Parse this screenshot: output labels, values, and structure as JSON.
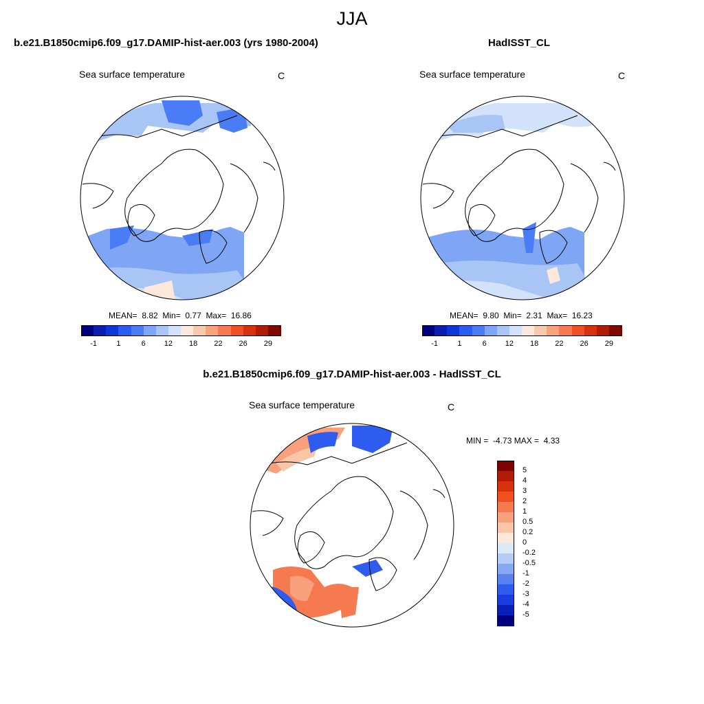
{
  "figure": {
    "title": "JJA",
    "panels": [
      {
        "title": "b.e21.B1850cmip6.f09_g17.DAMIP-hist-aer.003 (yrs 1980-2004)",
        "variable": "Sea surface temperature",
        "units": "C",
        "stats": {
          "mean_label": "MEAN=",
          "mean": "8.82",
          "min_label": "Min=",
          "min": "0.77",
          "max_label": "Max=",
          "max": "16.86"
        }
      },
      {
        "title": "HadISST_CL",
        "variable": "Sea surface temperature",
        "units": "C",
        "stats": {
          "mean_label": "MEAN=",
          "mean": "9.80",
          "min_label": "Min=",
          "min": "2.31",
          "max_label": "Max=",
          "max": "16.23"
        }
      },
      {
        "title": "b.e21.B1850cmip6.f09_g17.DAMIP-hist-aer.003 - HadISST_CL",
        "variable": "Sea surface temperature",
        "units": "C",
        "stats": {
          "min_label": "MIN =",
          "min": "-4.73",
          "max_label": "MAX =",
          "max": "4.33"
        }
      }
    ]
  },
  "chart_data": [
    {
      "type": "heatmap",
      "projection": "north polar stereographic",
      "title": "b.e21.B1850cmip6.f09_g17.DAMIP-hist-aer.003 (yrs 1980-2004)",
      "variable": "Sea surface temperature",
      "units": "C",
      "mean": 8.82,
      "min": 0.77,
      "max": 16.86,
      "colorbar": {
        "tick_labels": [
          "-1",
          "1",
          "6",
          "12",
          "18",
          "22",
          "26",
          "29"
        ],
        "colors": [
          "#00007f",
          "#0a1fb0",
          "#0f37d8",
          "#2a5ef0",
          "#4a7df5",
          "#7fa5f5",
          "#a9c5f5",
          "#d2e2fa",
          "#fde8dc",
          "#f9c9ae",
          "#f7a37e",
          "#f57a4f",
          "#ef4f24",
          "#d8300c",
          "#b01c04",
          "#7f0a02"
        ]
      }
    },
    {
      "type": "heatmap",
      "projection": "north polar stereographic",
      "title": "HadISST_CL",
      "variable": "Sea surface temperature",
      "units": "C",
      "mean": 9.8,
      "min": 2.31,
      "max": 16.23,
      "colorbar": {
        "tick_labels": [
          "-1",
          "1",
          "6",
          "12",
          "18",
          "22",
          "26",
          "29"
        ],
        "colors": [
          "#00007f",
          "#0a1fb0",
          "#0f37d8",
          "#2a5ef0",
          "#4a7df5",
          "#7fa5f5",
          "#a9c5f5",
          "#d2e2fa",
          "#fde8dc",
          "#f9c9ae",
          "#f7a37e",
          "#f57a4f",
          "#ef4f24",
          "#d8300c",
          "#b01c04",
          "#7f0a02"
        ]
      }
    },
    {
      "type": "heatmap",
      "projection": "north polar stereographic",
      "title": "b.e21.B1850cmip6.f09_g17.DAMIP-hist-aer.003 - HadISST_CL",
      "variable": "Sea surface temperature",
      "units": "C",
      "min": -4.73,
      "max": 4.33,
      "colorbar": {
        "orientation": "vertical",
        "tick_labels": [
          "5",
          "4",
          "3",
          "2",
          "1",
          "0.5",
          "0.2",
          "0",
          "-0.2",
          "-0.5",
          "-1",
          "-2",
          "-3",
          "-4",
          "-5"
        ],
        "colors": [
          "#7f0000",
          "#b01c04",
          "#d8300c",
          "#f05020",
          "#f57a4f",
          "#f9a07c",
          "#fbc5a8",
          "#fde8dc",
          "#dde8f8",
          "#b5cdf5",
          "#86a8f2",
          "#5a82ef",
          "#2e5cee",
          "#1a3ce0",
          "#0a20b8",
          "#00007f"
        ]
      }
    }
  ]
}
